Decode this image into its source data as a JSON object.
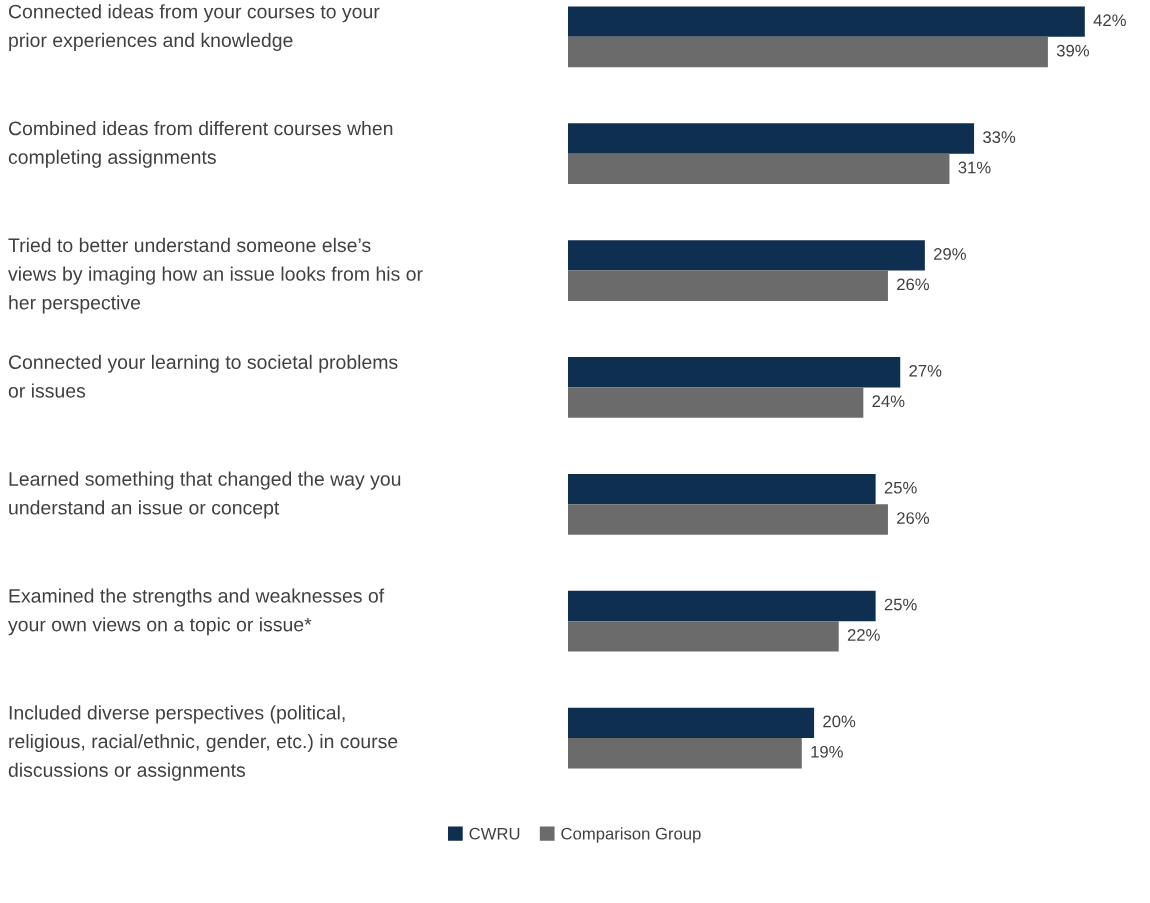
{
  "chart_data": {
    "type": "bar",
    "orientation": "horizontal",
    "legend": "bottom",
    "categories": [
      "Connected ideas from your courses to your\nprior experiences and knowledge",
      "Combined ideas from different courses when\ncompleting assignments",
      "Tried to better understand someone else’s\nviews by imaging how an issue looks from his or\nher perspective",
      "Connected your learning to societal problems\nor issues",
      "Learned something that changed the way you\nunderstand an issue or concept",
      "Examined the strengths and weaknesses of\nyour own views on a topic or issue*",
      "Included diverse perspectives (political,\nreligious, racial/ethnic, gender, etc.) in course\ndiscussions or assignments"
    ],
    "series": [
      {
        "name": "CWRU",
        "color": "#0e2f4f",
        "values": [
          42,
          33,
          29,
          27,
          25,
          25,
          20
        ],
        "value_labels": [
          "42%",
          "33%",
          "29%",
          "27%",
          "25%",
          "25%",
          "20%"
        ]
      },
      {
        "name": "Comparison Group",
        "color": "#6b6b6b",
        "values": [
          39,
          31,
          26,
          24,
          26,
          22,
          19
        ],
        "value_labels": [
          "39%",
          "31%",
          "26%",
          "24%",
          "26%",
          "22%",
          "19%"
        ]
      }
    ]
  }
}
